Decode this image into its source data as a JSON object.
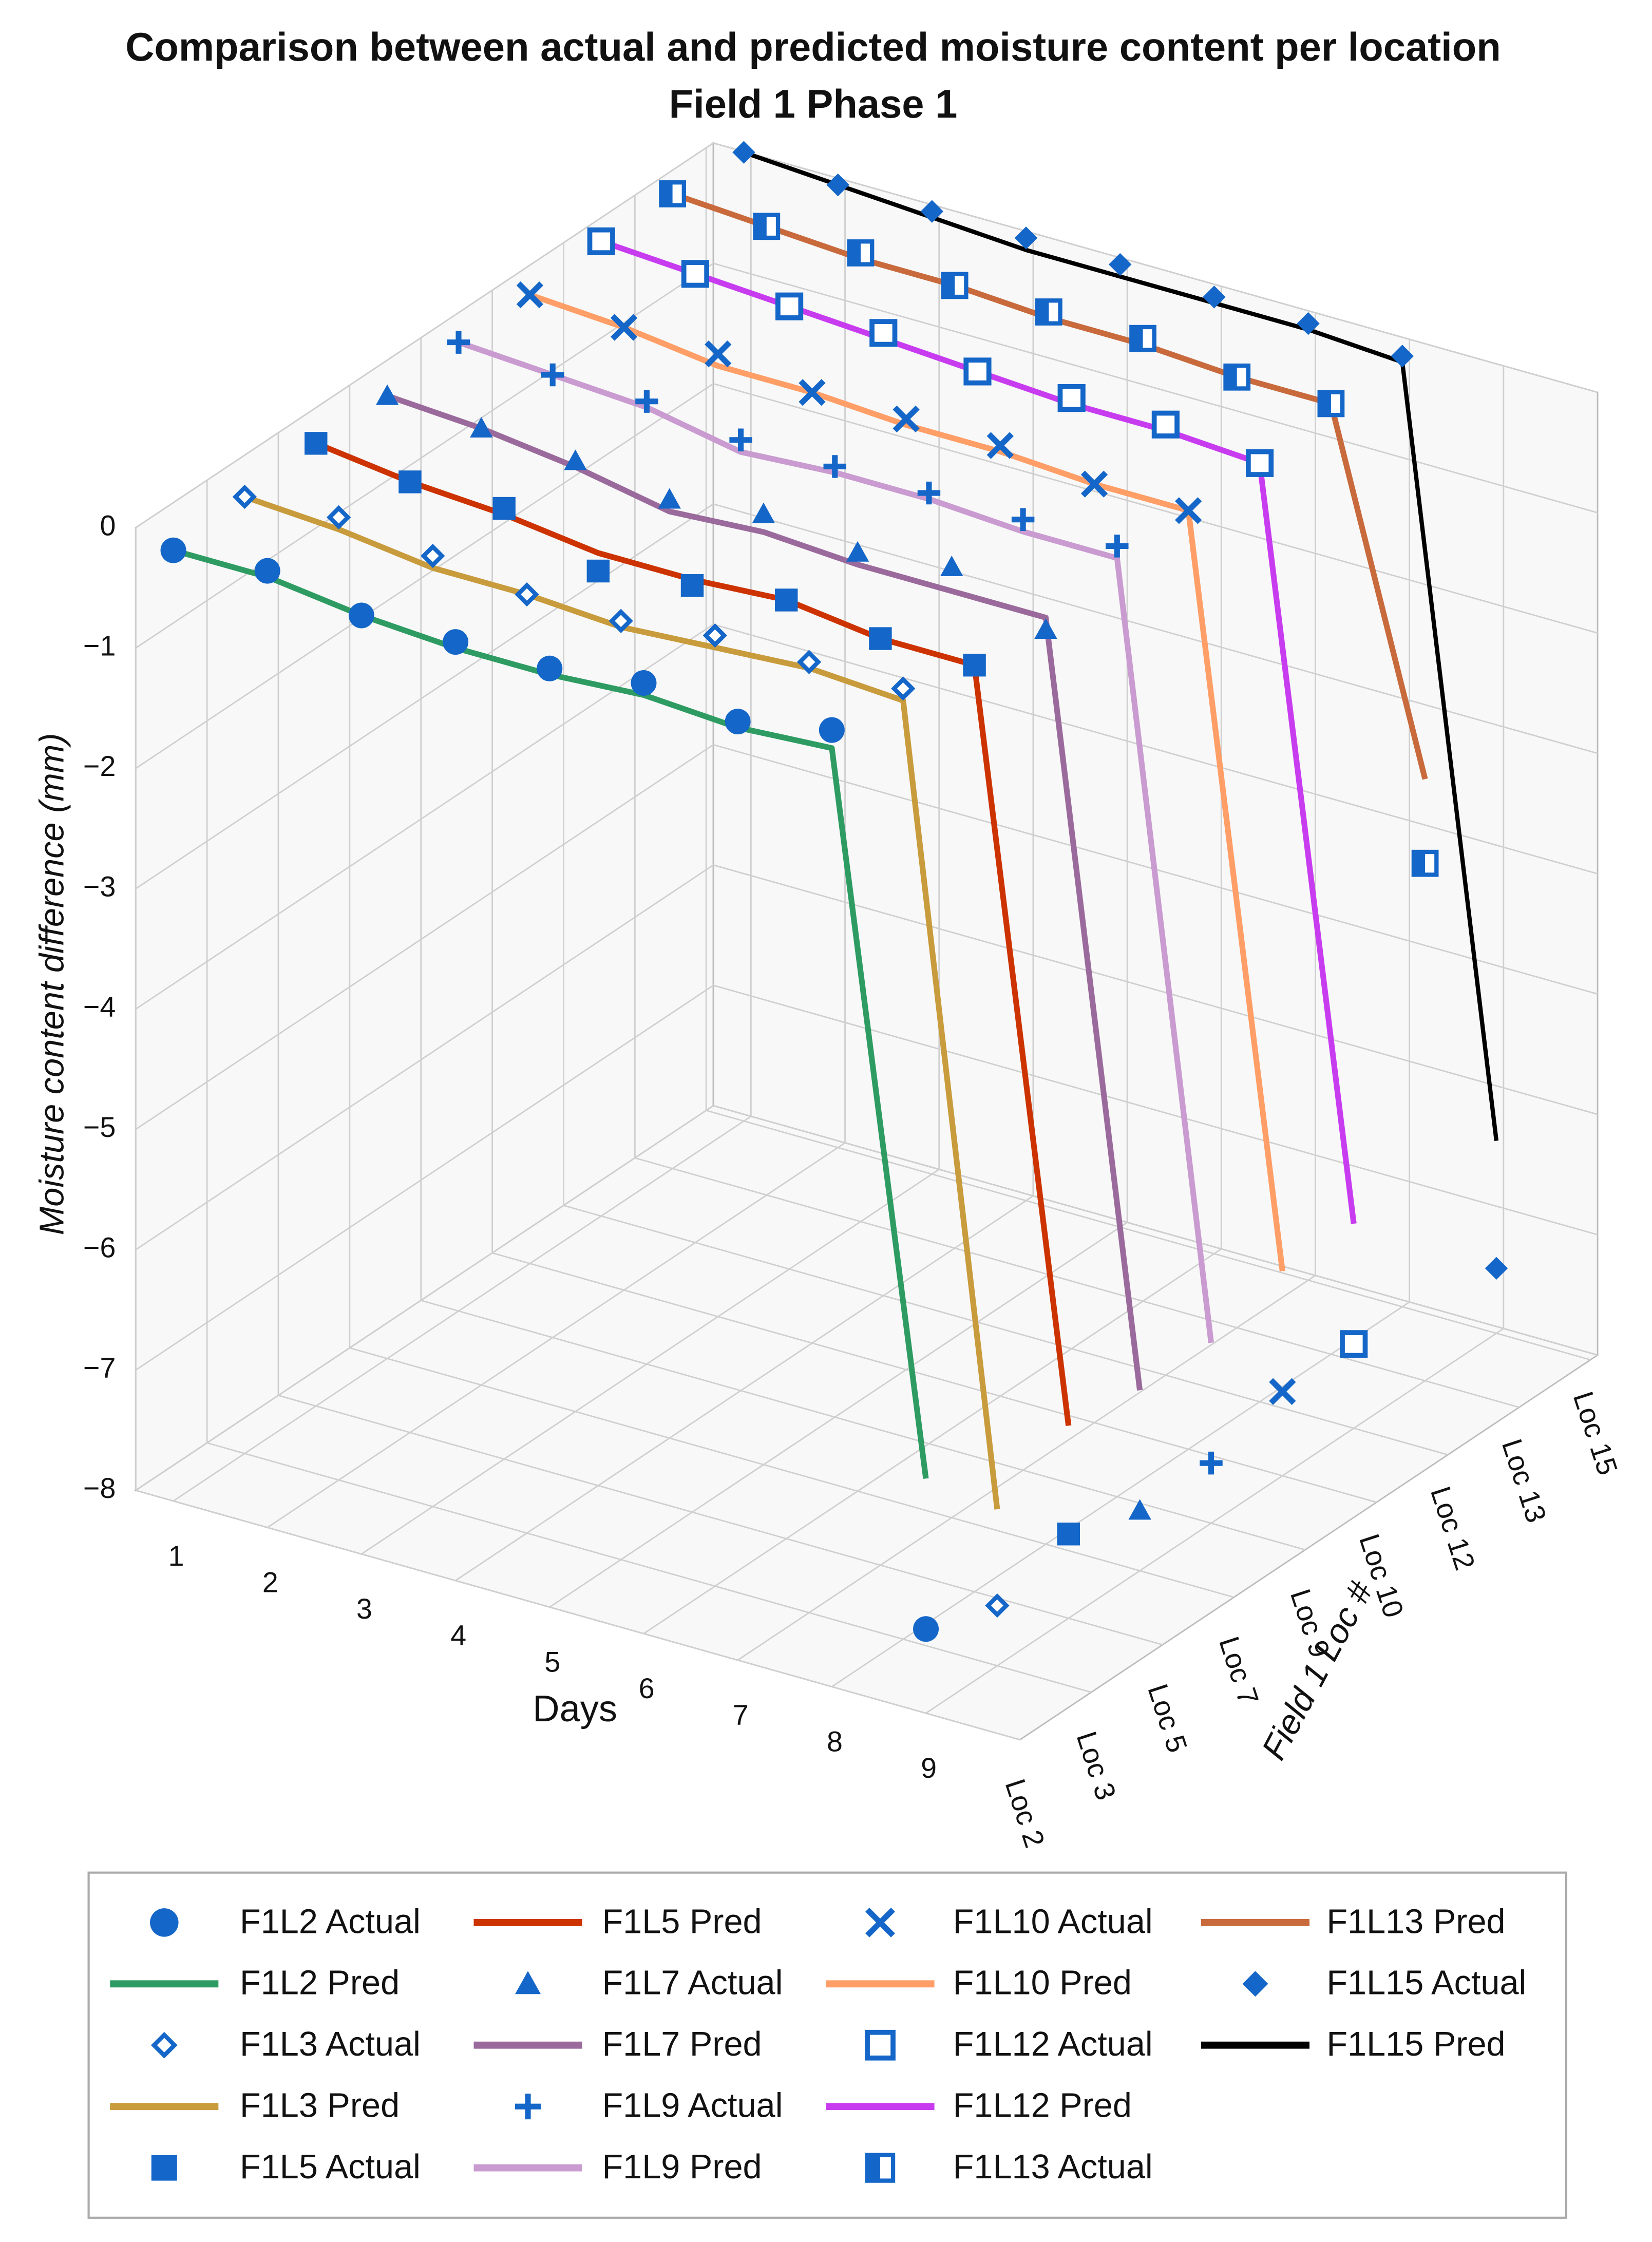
{
  "chart_data": {
    "type": "line3d",
    "title": "Comparison between actual and predicted moisture content per location",
    "subtitle": "Field 1 Phase 1",
    "xlabel": "Days",
    "ylabel": "Moisture content difference (mm)",
    "zlabel": "Field 1 Loc #",
    "x": [
      1,
      2,
      3,
      4,
      5,
      6,
      7,
      8,
      9
    ],
    "xlim": [
      0.6,
      10
    ],
    "xticks": [
      1,
      2,
      3,
      4,
      5,
      6,
      7,
      8,
      9
    ],
    "ylim": [
      -8,
      0
    ],
    "yticks": [
      {
        "value": -8,
        "label": "−8"
      },
      {
        "value": -7,
        "label": "−7"
      },
      {
        "value": -6,
        "label": "−6"
      },
      {
        "value": -5,
        "label": "−5"
      },
      {
        "value": -4,
        "label": "−4"
      },
      {
        "value": -3,
        "label": "−3"
      },
      {
        "value": -2,
        "label": "−2"
      },
      {
        "value": -1,
        "label": "−1"
      },
      0
    ],
    "z_categories": [
      "Loc 2",
      "Loc 3",
      "Loc 5",
      "Loc 7",
      "Loc 9",
      "Loc 10",
      "Loc 12",
      "Loc 13",
      "Loc 15"
    ],
    "grid": true,
    "series": [
      {
        "name": "F1L2 Actual",
        "type": "scatter",
        "marker": "circle",
        "color": "#1466c8",
        "location": 0,
        "values": [
          -0.1,
          -0.05,
          -0.2,
          -0.2,
          -0.2,
          -0.1,
          -0.2,
          -0.05,
          -7.3
        ]
      },
      {
        "name": "F1L2 Pred",
        "type": "line",
        "color": "#2e9c62",
        "location": 0,
        "values": [
          -0.1,
          -0.1,
          -0.2,
          -0.25,
          -0.25,
          -0.2,
          -0.25,
          -0.2,
          -6.05
        ]
      },
      {
        "name": "F1L3 Actual",
        "type": "scatter",
        "marker": "diamond-open",
        "color": "#1466c8",
        "location": 1,
        "values": [
          -0.05,
          0,
          -0.1,
          -0.2,
          -0.2,
          -0.1,
          -0.1,
          -0.1,
          -7.5
        ]
      },
      {
        "name": "F1L3 Pred",
        "type": "line",
        "color": "#c89b3c",
        "location": 1,
        "values": [
          -0.05,
          -0.1,
          -0.2,
          -0.2,
          -0.25,
          -0.2,
          -0.15,
          -0.2,
          -6.7
        ]
      },
      {
        "name": "F1L5 Actual",
        "type": "scatter",
        "marker": "square",
        "color": "#1466c8",
        "location": 2,
        "values": [
          0,
          -0.1,
          -0.1,
          -0.4,
          -0.3,
          -0.2,
          -0.3,
          -0.3,
          -7.3
        ]
      },
      {
        "name": "F1L5 Pred",
        "type": "line",
        "color": "#cc3300",
        "location": 2,
        "values": [
          0,
          -0.1,
          -0.15,
          -0.25,
          -0.25,
          -0.2,
          -0.3,
          -0.3,
          -6.4
        ]
      },
      {
        "name": "F1L7 Actual",
        "type": "scatter",
        "marker": "triangle",
        "color": "#1466c8",
        "location": 3,
        "values": [
          0,
          -0.05,
          -0.1,
          -0.2,
          -0.1,
          -0.2,
          -0.1,
          -0.4,
          -7.5
        ]
      },
      {
        "name": "F1L7 Pred",
        "type": "line",
        "color": "#9b6a9c",
        "location": 3,
        "values": [
          0,
          -0.05,
          -0.15,
          -0.3,
          -0.25,
          -0.3,
          -0.3,
          -0.3,
          -6.5
        ]
      },
      {
        "name": "F1L9 Actual",
        "type": "scatter",
        "marker": "plus",
        "color": "#1466c8",
        "location": 4,
        "values": [
          0.05,
          0,
          0,
          -0.1,
          -0.1,
          -0.1,
          -0.1,
          -0.1,
          -7.5
        ]
      },
      {
        "name": "F1L9 Pred",
        "type": "line",
        "color": "#c99bd0",
        "location": 4,
        "values": [
          0.05,
          0,
          -0.05,
          -0.2,
          -0.15,
          -0.15,
          -0.2,
          -0.2,
          -6.5
        ]
      },
      {
        "name": "F1L10 Actual",
        "type": "scatter",
        "marker": "x",
        "color": "#1466c8",
        "location": 5,
        "values": [
          0.05,
          0,
          0,
          -0.1,
          -0.1,
          -0.1,
          -0.2,
          -0.2,
          -7.3
        ]
      },
      {
        "name": "F1L10 Pred",
        "type": "line",
        "color": "#ff9e66",
        "location": 5,
        "values": [
          0.05,
          0,
          -0.1,
          -0.1,
          -0.15,
          -0.15,
          -0.2,
          -0.2,
          -6.3
        ]
      },
      {
        "name": "F1L12 Actual",
        "type": "scatter",
        "marker": "square-open",
        "color": "#1466c8",
        "location": 6,
        "values": [
          0.1,
          0.05,
          0,
          0,
          -0.1,
          -0.1,
          -0.1,
          -0.2,
          -7.3
        ]
      },
      {
        "name": "F1L12 Pred",
        "type": "line",
        "color": "#c83cf0",
        "location": 6,
        "values": [
          0.1,
          0.05,
          0,
          -0.05,
          -0.1,
          -0.15,
          -0.15,
          -0.2,
          -6.3
        ]
      },
      {
        "name": "F1L13 Actual",
        "type": "scatter",
        "marker": "square-half",
        "color": "#1466c8",
        "location": 7,
        "values": [
          0.1,
          0.05,
          0.05,
          0,
          0,
          0,
          -0.1,
          -0.1,
          -3.7
        ]
      },
      {
        "name": "F1L13 Pred",
        "type": "line",
        "color": "#c86a3c",
        "location": 7,
        "values": [
          0.1,
          0.05,
          0,
          0,
          -0.05,
          -0.05,
          -0.1,
          -0.1,
          -3.0
        ]
      },
      {
        "name": "F1L15 Actual",
        "type": "scatter",
        "marker": "diamond",
        "color": "#1466c8",
        "location": 8,
        "values": [
          0.05,
          0,
          0,
          0,
          0,
          -0.05,
          -0.05,
          -0.1,
          -7.46
        ]
      },
      {
        "name": "F1L15 Pred",
        "type": "line",
        "color": "#000000",
        "location": 8,
        "values": [
          0.05,
          0,
          -0.05,
          -0.1,
          -0.1,
          -0.1,
          -0.1,
          -0.15,
          -6.4
        ]
      }
    ]
  }
}
